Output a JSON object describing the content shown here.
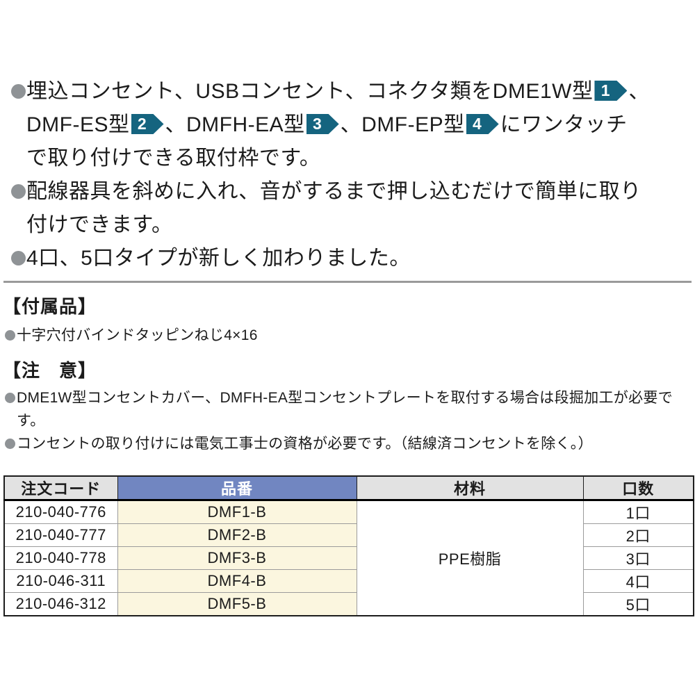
{
  "colors": {
    "badge_teal": "#15647f",
    "bullet_gray": "#8f9396",
    "header_blue": "#7186c1",
    "header_gray": "#e2e2e2",
    "part_cell_cream": "#fbf6df"
  },
  "feature1": {
    "line1_text": "埋込コンセント、USBコンセント、コネクタ類をDME1W型",
    "badge1": "1",
    "sep1": "、",
    "line2_part1": "DMF-ES型",
    "badge2": "2",
    "line2_part2": "、DMFH-EA型",
    "badge3": "3",
    "line2_part3": "、DMF-EP型",
    "badge4": "4",
    "line2_tail": "にワンタッチ",
    "line3_text": "で取り付けできる取付枠です。"
  },
  "feature2": {
    "line1": "配線器具を斜めに入れ、音がするまで押し込むだけで簡単に取り",
    "line2": "付けできます。"
  },
  "feature3": {
    "line1": "4口、5口タイプが新しく加わりました。"
  },
  "accessories": {
    "heading": "【付属品】",
    "item1": "十字穴付バインドタッピンねじ4×16"
  },
  "notes": {
    "heading": "【注　意】",
    "note1_line1": "DME1W型コンセントカバー、DMFH-EA型コンセントプレートを取付する場合は段掘加工が必要で",
    "note1_line2": "す。",
    "note2": "コンセントの取り付けには電気工事士の資格が必要です。（結線済コンセントを除く。）"
  },
  "table": {
    "headers": [
      "注文コード",
      "品番",
      "材料",
      "口数"
    ],
    "material": "PPE樹脂",
    "rows": [
      {
        "code": "210-040-776",
        "part": "DMF1-B",
        "ports": "1口"
      },
      {
        "code": "210-040-777",
        "part": "DMF2-B",
        "ports": "2口"
      },
      {
        "code": "210-040-778",
        "part": "DMF3-B",
        "ports": "3口"
      },
      {
        "code": "210-046-311",
        "part": "DMF4-B",
        "ports": "4口"
      },
      {
        "code": "210-046-312",
        "part": "DMF5-B",
        "ports": "5口"
      }
    ]
  }
}
